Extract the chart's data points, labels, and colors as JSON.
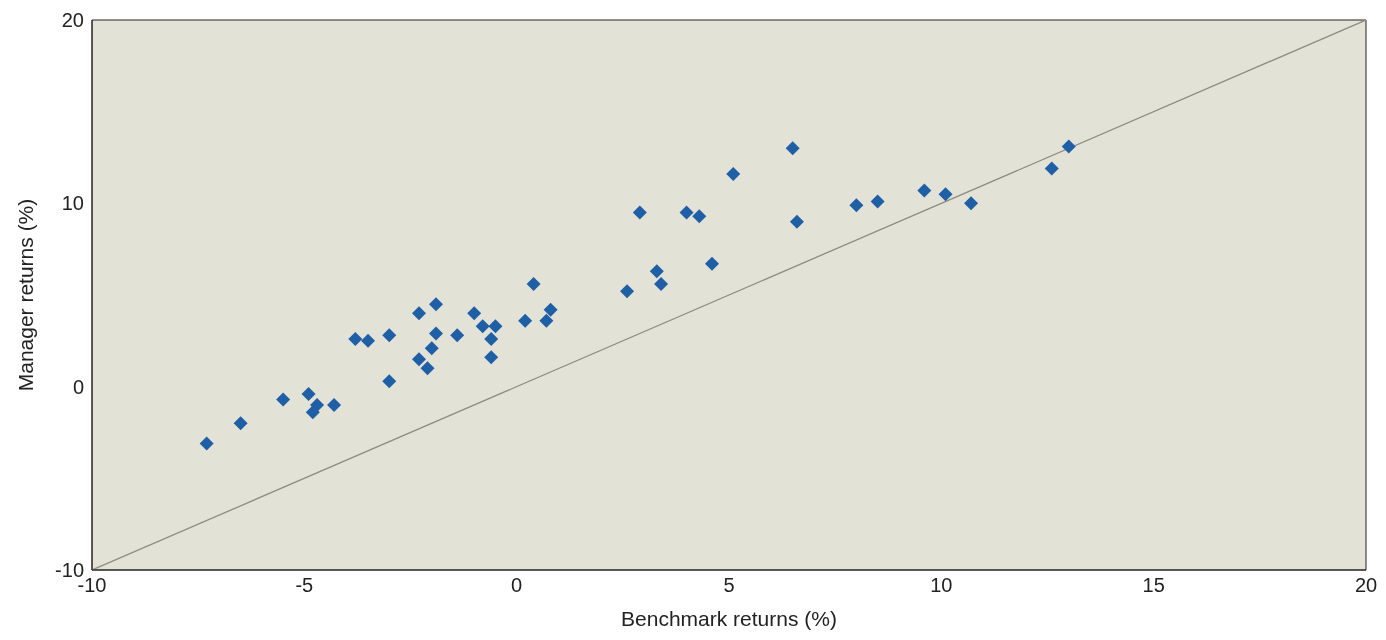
{
  "chart_data": {
    "type": "scatter",
    "xlabel": "Benchmark returns (%)",
    "ylabel": "Manager returns (%)",
    "xlim": [
      -10,
      20
    ],
    "ylim": [
      -10,
      20
    ],
    "xticks": [
      -10,
      -5,
      0,
      5,
      10,
      15,
      20
    ],
    "yticks": [
      -10,
      0,
      10,
      20
    ],
    "grid": false,
    "legend": false,
    "marker": "diamond",
    "series": [
      {
        "color": "#1f5fa6",
        "x": [
          -7.3,
          -6.5,
          -5.5,
          -4.9,
          -4.7,
          -4.8,
          -4.3,
          -3.8,
          -3.5,
          -3.0,
          -3.0,
          -2.3,
          -2.3,
          -2.1,
          -2.0,
          -1.9,
          -1.9,
          -1.4,
          -1.0,
          -0.8,
          -0.6,
          -0.6,
          -0.5,
          0.2,
          0.4,
          0.7,
          0.8,
          2.6,
          2.9,
          3.3,
          3.4,
          4.0,
          4.3,
          4.6,
          5.1,
          6.5,
          6.6,
          8.0,
          8.5,
          9.6,
          10.1,
          10.7,
          12.6,
          13.0
        ],
        "values": [
          -3.1,
          -2.0,
          -0.7,
          -0.4,
          -1.0,
          -1.4,
          -1.0,
          2.6,
          2.5,
          0.3,
          2.8,
          1.5,
          4.0,
          1.0,
          2.1,
          2.9,
          4.5,
          2.8,
          4.0,
          3.3,
          1.6,
          2.6,
          3.3,
          3.6,
          5.6,
          3.6,
          4.2,
          5.2,
          9.5,
          6.3,
          5.6,
          9.5,
          9.3,
          6.7,
          11.6,
          13.0,
          9.0,
          9.9,
          10.1,
          10.7,
          10.5,
          10.0,
          11.9,
          13.1
        ]
      },
      {
        "type": "line",
        "color": "#8c8c80",
        "x": [
          -10,
          20
        ],
        "values": [
          -10,
          20
        ],
        "line_style": "solid",
        "marker": "none"
      }
    ]
  }
}
